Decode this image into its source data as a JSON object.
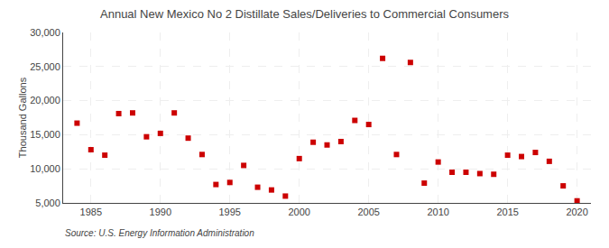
{
  "chart_data": {
    "type": "scatter",
    "title": "Annual New Mexico No 2 Distillate Sales/Deliveries to Commercial Consumers",
    "ylabel": "Thousand Gallons",
    "annotations": [
      "Source: U.S. Energy Information Administration"
    ],
    "x": [
      1984,
      1985,
      1986,
      1987,
      1988,
      1989,
      1990,
      1991,
      1992,
      1993,
      1994,
      1995,
      1996,
      1997,
      1998,
      1999,
      2000,
      2001,
      2002,
      2003,
      2004,
      2005,
      2006,
      2007,
      2008,
      2009,
      2010,
      2011,
      2012,
      2013,
      2014,
      2015,
      2016,
      2017,
      2018,
      2019,
      2020
    ],
    "values": [
      16700,
      12800,
      12000,
      18100,
      18200,
      14700,
      15200,
      18200,
      14500,
      12100,
      7700,
      8000,
      10500,
      7300,
      6900,
      6000,
      11500,
      13900,
      13500,
      14000,
      17100,
      16500,
      26200,
      12100,
      25600,
      7900,
      11000,
      9500,
      9500,
      9300,
      9200,
      12000,
      11800,
      12400,
      11100,
      7500,
      5300
    ],
    "color": "#cc0000",
    "marker": "square",
    "xlim": [
      1983,
      2021
    ],
    "ylim": [
      5000,
      30000
    ],
    "xticks": [
      1985,
      1990,
      1995,
      2000,
      2005,
      2010,
      2015,
      2020
    ],
    "yticks": [
      {
        "value": 5000,
        "label": "5,000"
      },
      {
        "value": 10000,
        "label": "10,000"
      },
      {
        "value": 15000,
        "label": "15,000"
      },
      {
        "value": 20000,
        "label": "20,000"
      },
      {
        "value": 25000,
        "label": "25,000"
      },
      {
        "value": 30000,
        "label": "30,000"
      }
    ],
    "grid": true
  }
}
